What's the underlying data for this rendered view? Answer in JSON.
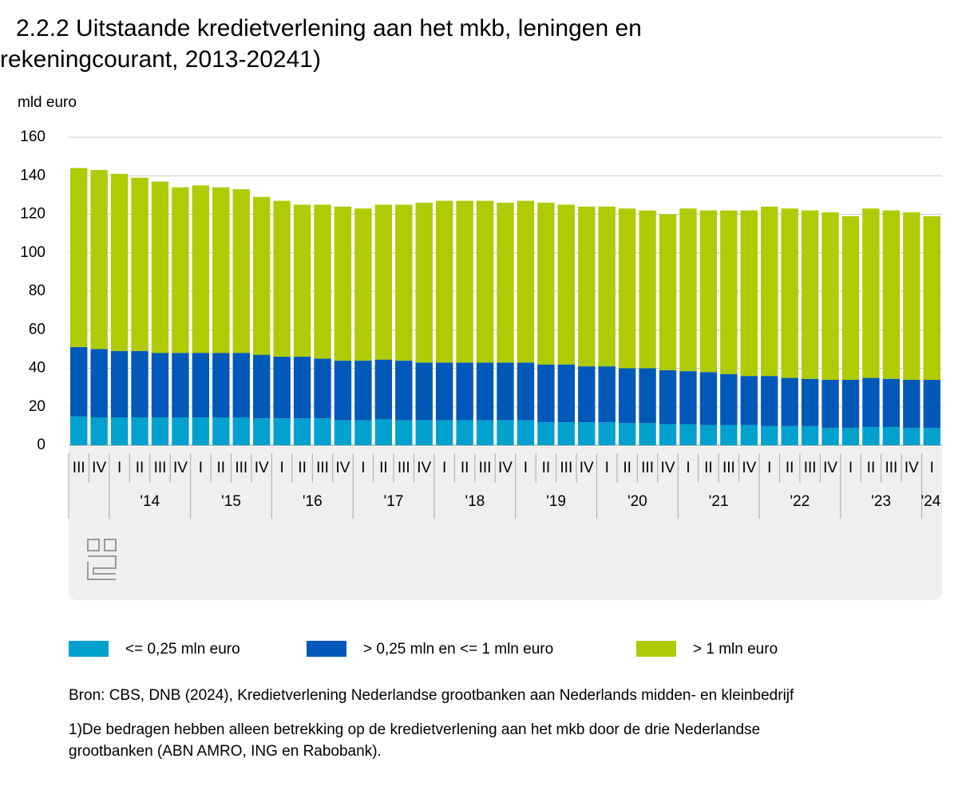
{
  "chart_data": {
    "type": "stacked-bar",
    "title_lines": [
      "2.2.2 Uitstaande kredietverlening aan het mkb, leningen en",
      "rekeningcourant, 2013-20241)"
    ],
    "y_label": "mld euro",
    "groups": [
      {
        "quarters": [
          "III",
          "IV"
        ]
      },
      {
        "label": "'14",
        "quarters": [
          "I",
          "II",
          "III",
          "IV"
        ]
      },
      {
        "label": "'15",
        "quarters": [
          "I",
          "II",
          "III",
          "IV"
        ]
      },
      {
        "label": "'16",
        "quarters": [
          "I",
          "II",
          "III",
          "IV"
        ]
      },
      {
        "label": "'17",
        "quarters": [
          "I",
          "II",
          "III",
          "IV"
        ]
      },
      {
        "label": "'18",
        "quarters": [
          "I",
          "II",
          "III",
          "IV"
        ]
      },
      {
        "label": "'19",
        "quarters": [
          "I",
          "II",
          "III",
          "IV"
        ]
      },
      {
        "label": "'20",
        "quarters": [
          "I",
          "II",
          "III",
          "IV"
        ]
      },
      {
        "label": "'21",
        "quarters": [
          "I",
          "II",
          "III",
          "IV"
        ]
      },
      {
        "label": "'22",
        "quarters": [
          "I",
          "II",
          "III",
          "IV"
        ]
      },
      {
        "label": "'23",
        "quarters": [
          "I",
          "II",
          "III",
          "IV"
        ]
      },
      {
        "label": "'24",
        "quarters": [
          "I"
        ]
      }
    ],
    "series": [
      {
        "name": "<= 0,25 mln euro",
        "color": "#00a1cd",
        "values": [
          15,
          14.5,
          14.5,
          14.5,
          14.5,
          14.5,
          14.5,
          14.5,
          14.5,
          14,
          14,
          14,
          14,
          13,
          13,
          13.5,
          13,
          13,
          13,
          13,
          13,
          13,
          13,
          12,
          12,
          12,
          12,
          11.5,
          11.5,
          11,
          11,
          10.5,
          10.5,
          10.5,
          10,
          10,
          10,
          9,
          9,
          9.5,
          9.5,
          9,
          9
        ]
      },
      {
        "name": "> 0,25 mln en <= 1 mln euro",
        "color": "#0058b8",
        "values": [
          36,
          35.5,
          34.5,
          34.5,
          33.5,
          33.5,
          33.5,
          33.5,
          33.5,
          33,
          32,
          32,
          31,
          31,
          31,
          31,
          31,
          30,
          30,
          30,
          30,
          30,
          30,
          30,
          30,
          29,
          29,
          28.5,
          28.5,
          28,
          27.5,
          27.5,
          26.5,
          25.5,
          26,
          25,
          24.5,
          25,
          25,
          25.5,
          25,
          25,
          25
        ]
      },
      {
        "name": "> 1 mln euro",
        "color": "#afcb05",
        "values": [
          93,
          93,
          92,
          90,
          89,
          86,
          87,
          86,
          85,
          82,
          81,
          79,
          80,
          80,
          79,
          80.5,
          81,
          83,
          84,
          84,
          84,
          83,
          84,
          84,
          83,
          83,
          83,
          83,
          82,
          81,
          84.5,
          84,
          85,
          86,
          88,
          88,
          87.5,
          87,
          85,
          88,
          87.5,
          87,
          85
        ]
      }
    ],
    "ylim": [
      0,
      160
    ],
    "yticks": [
      0,
      20,
      40,
      60,
      80,
      100,
      120,
      140,
      160
    ],
    "grid": true,
    "source": "Bron: CBS, DNB (2024), Kredietverlening Nederlandse grootbanken aan Nederlands midden- en kleinbedrijf",
    "footnote_lines": [
      "1)De bedragen hebben alleen betrekking op de kredietverlening aan het mkb door de drie Nederlandse",
      "grootbanken (ABN AMRO, ING en Rabobank)."
    ]
  }
}
